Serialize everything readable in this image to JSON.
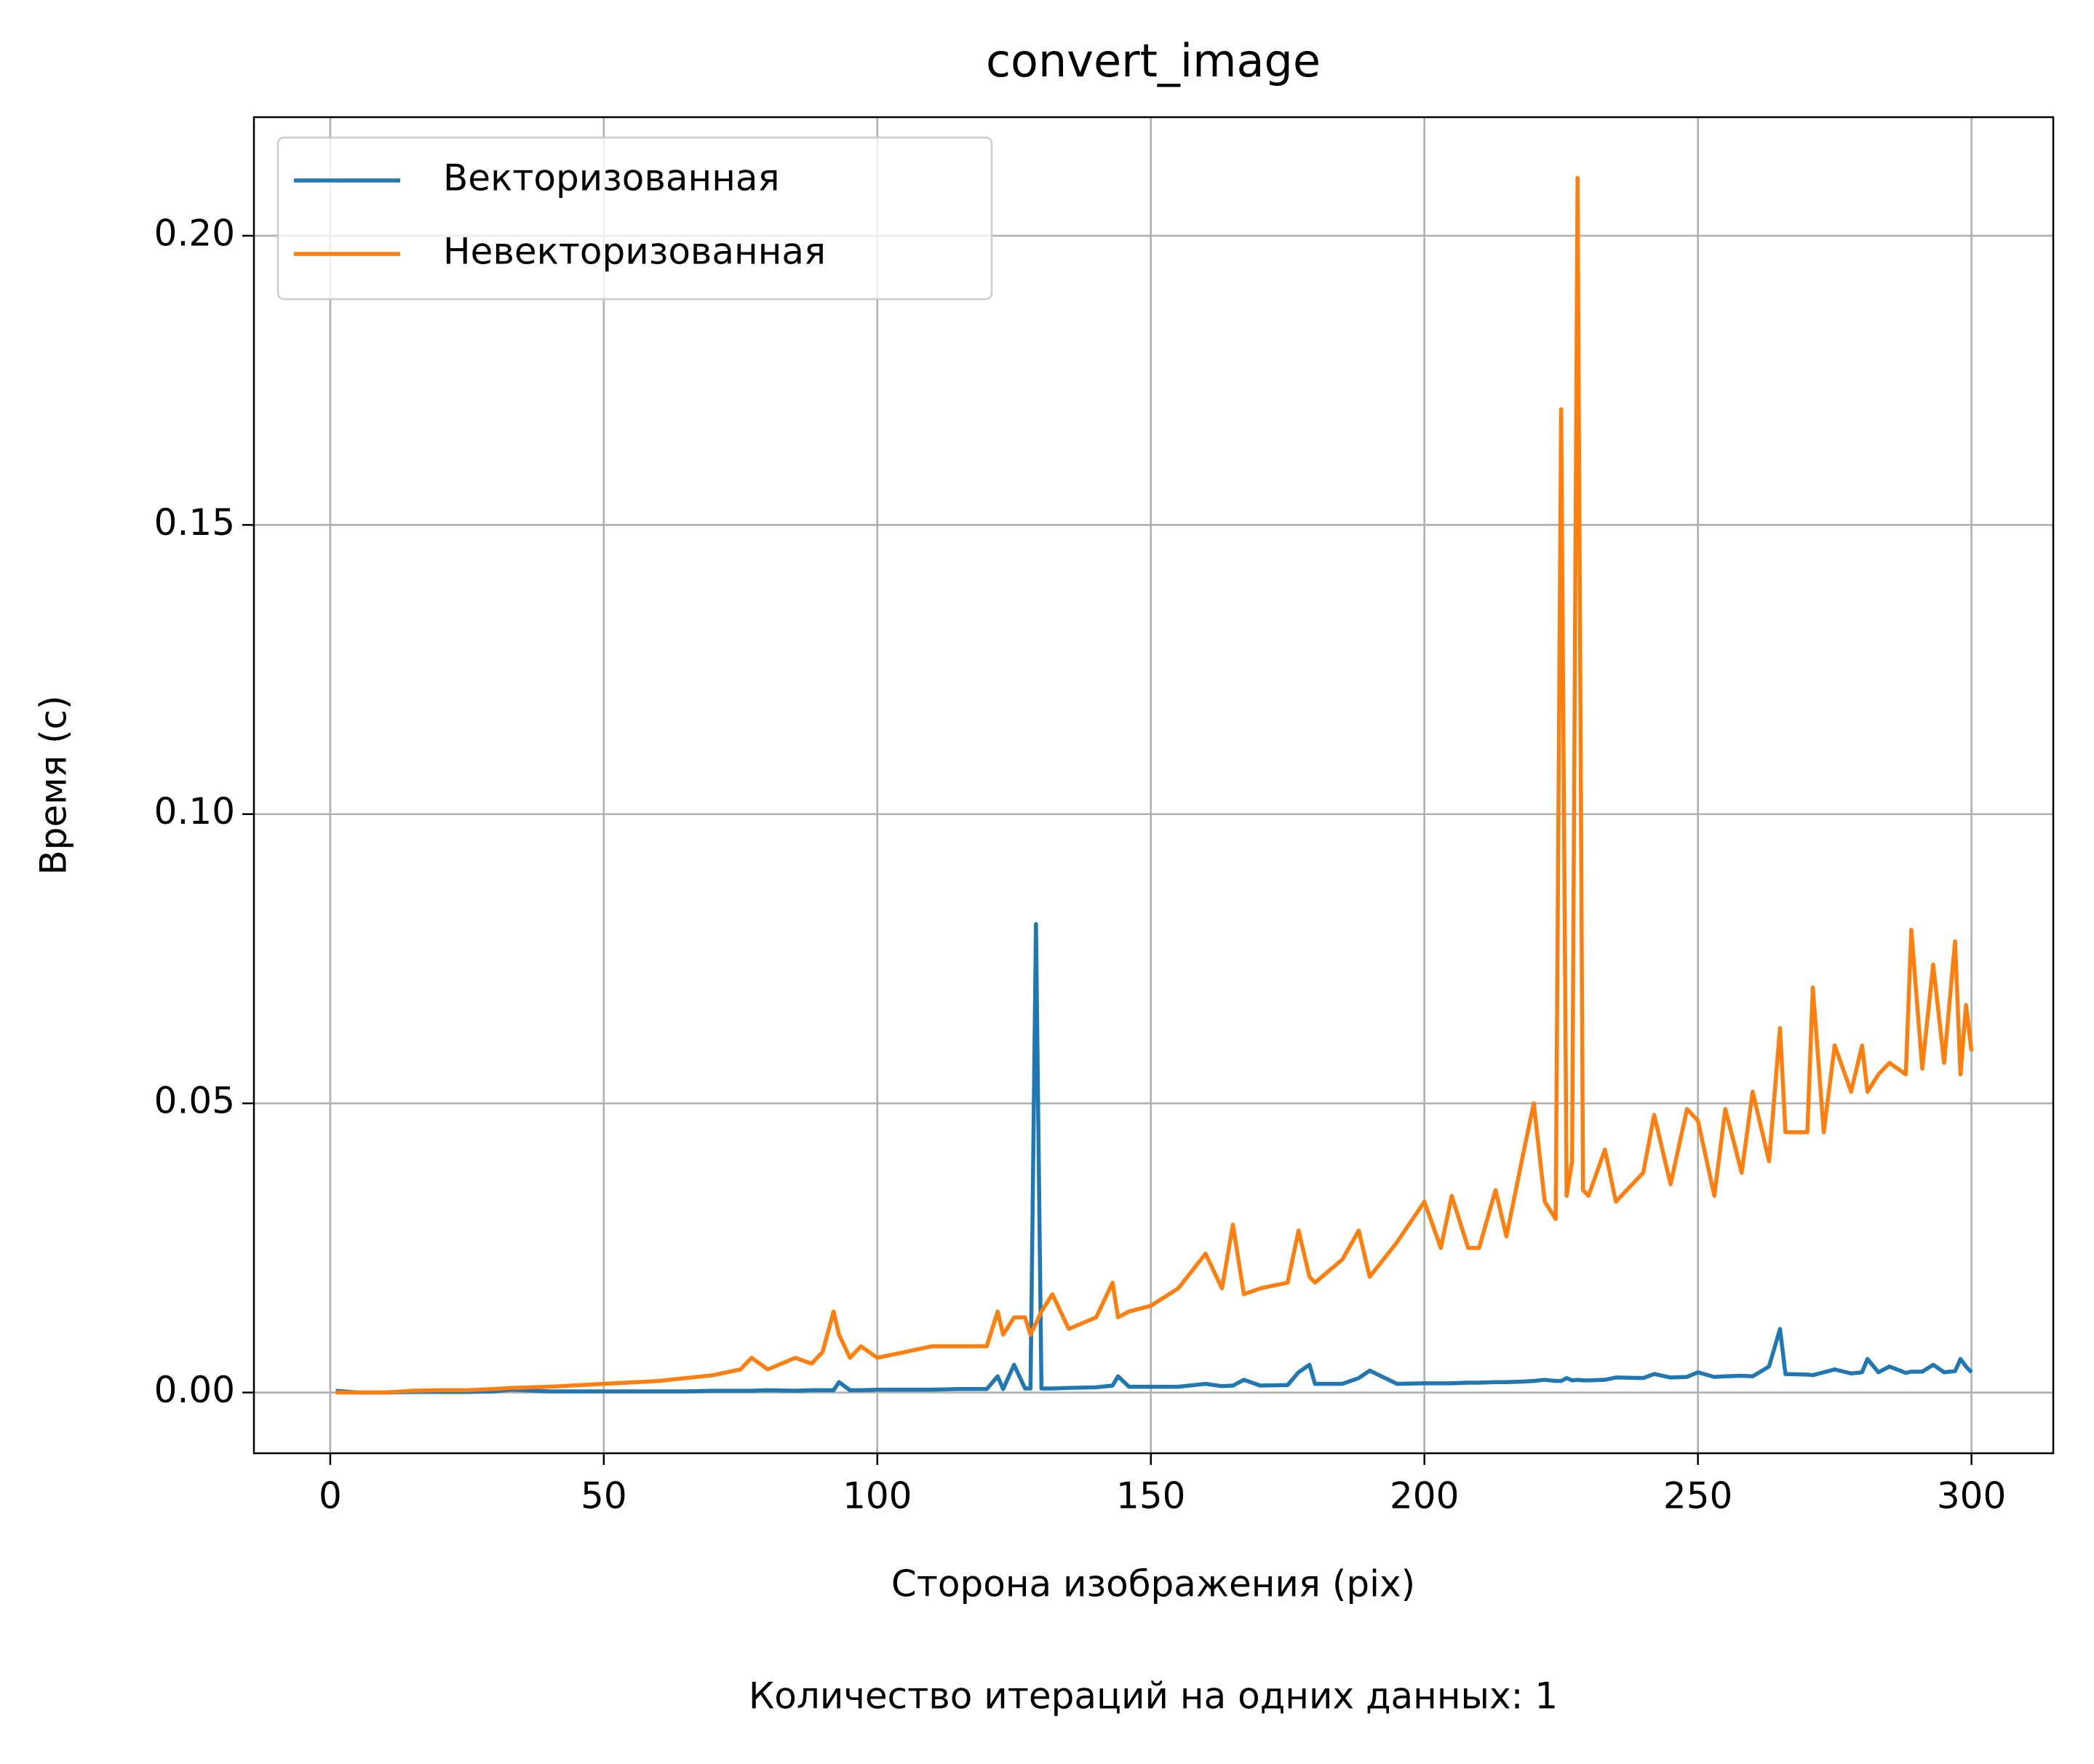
{
  "chart_data": {
    "type": "line",
    "title": "convert_image",
    "x_label": "Сторона изображения (pix)",
    "y_label": "Время (с)",
    "footnote": "Количество итераций на одних данных: 1",
    "x": [
      1,
      5,
      10,
      15,
      20,
      25,
      30,
      33,
      40,
      50,
      60,
      65,
      70,
      75,
      77,
      80,
      85,
      88,
      90,
      92,
      93,
      95,
      97,
      100,
      105,
      110,
      115,
      120,
      122,
      123,
      125,
      127,
      128,
      129,
      130,
      132,
      135,
      140,
      143,
      144,
      146,
      150,
      155,
      160,
      163,
      165,
      167,
      170,
      175,
      177,
      179,
      180,
      185,
      188,
      190,
      195,
      200,
      203,
      205,
      208,
      210,
      213,
      215,
      218,
      220,
      222,
      224,
      225,
      226,
      227,
      228,
      229,
      230,
      233,
      235,
      240,
      242,
      245,
      248,
      250,
      253,
      255,
      258,
      260,
      263,
      265,
      266,
      270,
      271,
      273,
      275,
      278,
      280,
      281,
      283,
      285,
      288,
      289,
      291,
      293,
      295,
      297,
      298,
      299,
      300
    ],
    "series": [
      {
        "name": "Векторизованная",
        "color": "#1f77b4",
        "values": [
          0.0003,
          0,
          0,
          0.0001,
          0.0001,
          0.0001,
          0.0002,
          0.0005,
          0.0002,
          0.0002,
          0.0002,
          0.0002,
          0.0003,
          0.0003,
          0.0003,
          0.0004,
          0.0003,
          0.0004,
          0.0004,
          0.0004,
          0.0018,
          0.0004,
          0.0004,
          0.0005,
          0.0005,
          0.0005,
          0.0006,
          0.0006,
          0.0028,
          0.0006,
          0.0048,
          0.0007,
          0.0007,
          0.081,
          0.0007,
          0.0007,
          0.0008,
          0.0009,
          0.0012,
          0.0028,
          0.001,
          0.001,
          0.001,
          0.0015,
          0.0011,
          0.0012,
          0.0022,
          0.0012,
          0.0013,
          0.0035,
          0.0048,
          0.0015,
          0.0015,
          0.0025,
          0.0038,
          0.0015,
          0.0016,
          0.0016,
          0.0016,
          0.0017,
          0.0017,
          0.0018,
          0.0018,
          0.0019,
          0.002,
          0.0022,
          0.002,
          0.002,
          0.0025,
          0.0021,
          0.0022,
          0.0021,
          0.0021,
          0.0022,
          0.0026,
          0.0025,
          0.0032,
          0.0026,
          0.0027,
          0.0035,
          0.0027,
          0.0028,
          0.0029,
          0.0028,
          0.0045,
          0.011,
          0.0032,
          0.0031,
          0.003,
          0.0035,
          0.004,
          0.0033,
          0.0035,
          0.0058,
          0.0035,
          0.0045,
          0.0034,
          0.0036,
          0.0036,
          0.0048,
          0.0035,
          0.0037,
          0.0058,
          0.0045,
          0.0035
        ]
      },
      {
        "name": "Невекторизованная",
        "color": "#ff7f0e",
        "values": [
          0,
          0,
          0,
          0.0003,
          0.0004,
          0.0004,
          0.0006,
          0.0008,
          0.001,
          0.0015,
          0.002,
          0.0025,
          0.003,
          0.004,
          0.006,
          0.004,
          0.006,
          0.005,
          0.007,
          0.014,
          0.01,
          0.006,
          0.008,
          0.006,
          0.007,
          0.008,
          0.008,
          0.008,
          0.014,
          0.01,
          0.013,
          0.013,
          0.01,
          0.012,
          0.014,
          0.017,
          0.011,
          0.013,
          0.019,
          0.013,
          0.014,
          0.015,
          0.018,
          0.024,
          0.018,
          0.029,
          0.017,
          0.018,
          0.019,
          0.028,
          0.02,
          0.019,
          0.023,
          0.028,
          0.02,
          0.026,
          0.033,
          0.025,
          0.034,
          0.025,
          0.025,
          0.035,
          0.027,
          0.041,
          0.05,
          0.033,
          0.03,
          0.17,
          0.034,
          0.04,
          0.21,
          0.035,
          0.034,
          0.042,
          0.033,
          0.038,
          0.048,
          0.036,
          0.049,
          0.047,
          0.034,
          0.049,
          0.038,
          0.052,
          0.04,
          0.063,
          0.045,
          0.045,
          0.07,
          0.045,
          0.06,
          0.052,
          0.06,
          0.052,
          0.055,
          0.057,
          0.055,
          0.08,
          0.056,
          0.074,
          0.057,
          0.078,
          0.055,
          0.067,
          0.059
        ]
      }
    ],
    "xlim": [
      -13.95,
      314.95
    ],
    "xticks": [
      0,
      50,
      100,
      150,
      200,
      250,
      300
    ],
    "ylim": [
      -0.0105,
      0.2205
    ],
    "yticks": [
      {
        "value": 0,
        "label": "0.00"
      },
      0.05,
      {
        "value": 0.1,
        "label": "0.10"
      },
      0.15,
      {
        "value": 0.2,
        "label": "0.20"
      }
    ],
    "grid": true,
    "legend": "upper-left"
  }
}
